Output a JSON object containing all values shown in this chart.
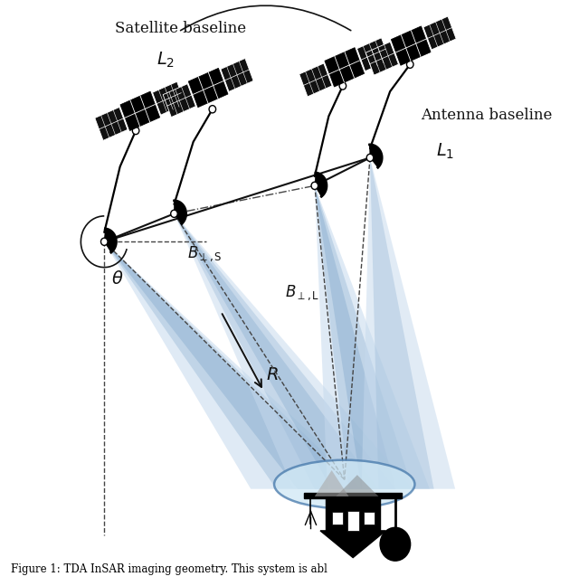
{
  "background_color": "#ffffff",
  "figsize": [
    6.4,
    6.48
  ],
  "dpi": 100,
  "label_sat_baseline": "Satellite baseline",
  "label_L2": "$L_2$",
  "label_L1": "$L_1$",
  "label_ant_baseline": "Antenna baseline",
  "label_Bps": "$B_{\\perp,\\mathrm{S}}$",
  "label_BpL": "$B_{\\perp,\\mathrm{L}}$",
  "label_theta": "$\\theta$",
  "label_R": "$R$",
  "caption": "Figure 1: TDA InSAR imaging geometry. This system is abl"
}
